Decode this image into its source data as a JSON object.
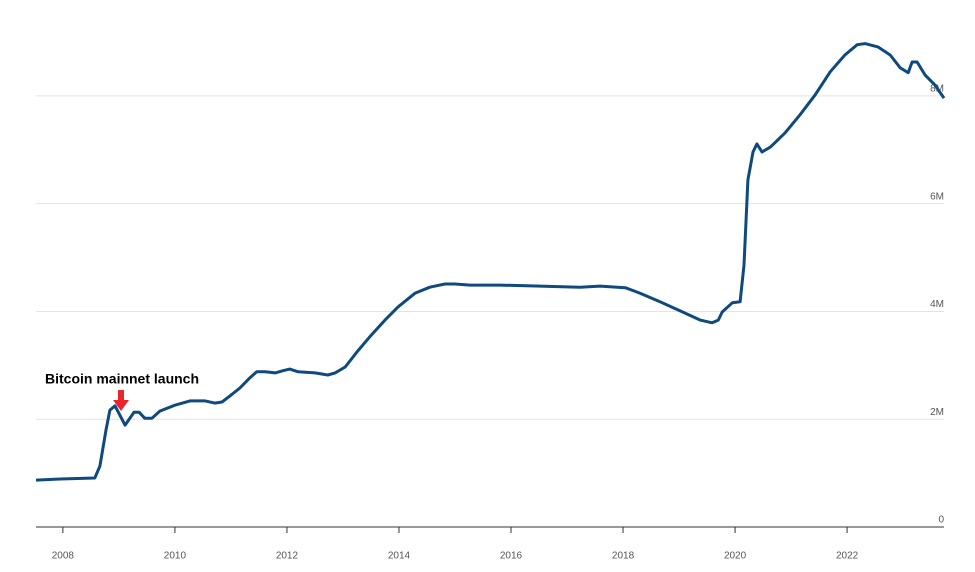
{
  "chart_data": {
    "type": "line",
    "annotations": [
      {
        "text": "Bitcoin mainnet launch"
      }
    ],
    "x": [
      2007.52,
      2007.95,
      2008.57,
      2008.66,
      2008.77,
      2008.84,
      2008.93,
      2009.11,
      2009.27,
      2009.36,
      2009.46,
      2009.59,
      2009.73,
      2010.0,
      2010.27,
      2010.54,
      2010.71,
      2010.84,
      2010.98,
      2011.16,
      2011.34,
      2011.46,
      2011.61,
      2011.79,
      2011.93,
      2012.05,
      2012.2,
      2012.5,
      2012.73,
      2012.86,
      2013.04,
      2013.25,
      2013.48,
      2013.75,
      2013.98,
      2014.29,
      2014.55,
      2014.82,
      2015.0,
      2015.27,
      2015.8,
      2016.52,
      2017.23,
      2017.59,
      2018.04,
      2018.3,
      2018.66,
      2019.02,
      2019.38,
      2019.59,
      2019.7,
      2019.77,
      2019.95,
      2020.09,
      2020.16,
      2020.23,
      2020.32,
      2020.39,
      2020.48,
      2020.63,
      2020.89,
      2021.16,
      2021.43,
      2021.7,
      2021.96,
      2022.18,
      2022.32,
      2022.55,
      2022.77,
      2022.95,
      2023.09,
      2023.16,
      2023.25,
      2023.39,
      2023.57,
      2023.73
    ],
    "series": [
      {
        "color": "#0e4a7e",
        "values": [
          870000,
          890000,
          910000,
          1130000,
          1800000,
          2170000,
          2250000,
          1890000,
          2130000,
          2130000,
          2020000,
          2020000,
          2150000,
          2260000,
          2340000,
          2340000,
          2300000,
          2320000,
          2430000,
          2580000,
          2770000,
          2880000,
          2880000,
          2860000,
          2900000,
          2930000,
          2880000,
          2860000,
          2820000,
          2860000,
          2970000,
          3250000,
          3530000,
          3840000,
          4080000,
          4340000,
          4450000,
          4510000,
          4510000,
          4490000,
          4490000,
          4470000,
          4450000,
          4470000,
          4440000,
          4340000,
          4180000,
          4010000,
          3840000,
          3790000,
          3840000,
          3990000,
          4160000,
          4180000,
          4860000,
          6440000,
          6960000,
          7110000,
          6960000,
          7050000,
          7310000,
          7650000,
          8020000,
          8450000,
          8760000,
          8950000,
          8970000,
          8910000,
          8760000,
          8520000,
          8430000,
          8630000,
          8630000,
          8390000,
          8200000,
          7960000
        ]
      }
    ],
    "xlim": [
      2007.52,
      2023.73
    ],
    "xticks": [
      2008,
      2010,
      2012,
      2014,
      2016,
      2018,
      2020,
      2022
    ],
    "ylim": [
      0,
      9780000
    ],
    "yticks": [
      0,
      {
        "value": 2000000,
        "label": "2M"
      },
      {
        "value": 4000000,
        "label": "4M"
      },
      {
        "value": 6000000,
        "label": "6M"
      },
      {
        "value": 8000000,
        "label": "8M"
      }
    ],
    "grid": true
  }
}
